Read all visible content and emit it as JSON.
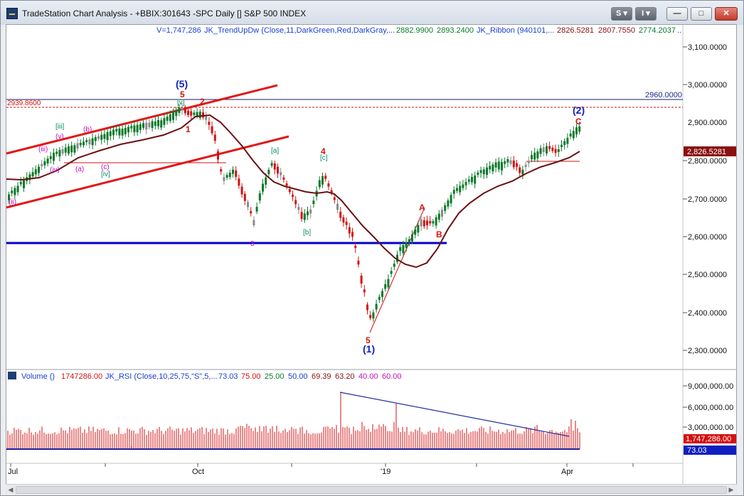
{
  "window": {
    "title": "TradeStation Chart Analysis - +BBIX:301643 -SPC Daily [] S&P 500 INDEX",
    "buttons": {
      "s_label": "S ▾",
      "i_label": "I ▾",
      "min": "—",
      "max": "□",
      "close": "✕"
    }
  },
  "price_header": {
    "v": "V=1,747,286",
    "trend": "JK_TrendUpDw (Close,11,DarkGreen,Red,DarkGray,...",
    "trend_v1": "2882.9900",
    "trend_v2": "2893.2400",
    "ribbon": "JK_Ribbon (940101,...",
    "ribbon_v1": "2826.5281",
    "ribbon_v2": "2807.7550",
    "ribbon_v3": "2774.2037",
    "more": ".."
  },
  "price_axis": [
    "3,100.0000",
    "3,000.0000",
    "2,800.0000",
    "2,700.0000",
    "2,600.0000",
    "2,500.0000",
    "2,400.0000",
    "2,300.0000"
  ],
  "price_axis_partial": "2,900.0000",
  "last_price": "2,826.5281",
  "level_labels": {
    "left": "2939.8600",
    "right": "2960.0000"
  },
  "waves": {
    "w5_major": "(5)",
    "w5_red": "5",
    "w2_red": "2",
    "w1_red": "1",
    "w_iii": "[iii]",
    "w_v_small": "(v)",
    "w_iii_small": "(iii)",
    "w_iv_small": "(iv)",
    "w_b_small": "(b)",
    "w_a_small": "(a)",
    "w_c_small": "(c)",
    "w_iv_bracket": "[iv]",
    "w_v_bracket": "[v]",
    "w_ii_left": "(ii)",
    "w_a_bracket": "[a]",
    "w_b_bracket": "[b]",
    "w_c_bracket": "[c]",
    "w4_red": "4",
    "w3": "3",
    "w5_bottom": "5",
    "w1_major": "(1)",
    "wA": "A",
    "wB": "B",
    "wC": "C",
    "w2_major": "(2)"
  },
  "volume_header": {
    "volume": "Volume ()",
    "volume_val": "1747286.00",
    "rsi": "JK_RSI (Close,10,25,75,\"S\",5,...",
    "v1": "73.03",
    "v2": "75.00",
    "v3": "25.00",
    "v4": "50.00",
    "v5": "69.39",
    "v6": "63.20",
    "v7": "40.00",
    "v8": "60.00"
  },
  "volume_axis": [
    "9,000,000.00",
    "6,000,000.00",
    "3,000,000.00"
  ],
  "volume_last": "1,747,286.00",
  "rsi_last": "73.03",
  "time_axis": [
    "Jul",
    "Oct",
    "'19",
    "Apr"
  ],
  "colors": {
    "up": "#0a7a2a",
    "down": "#d41010",
    "gray": "#8a8a8a",
    "ma": "#6b1010",
    "channel": "#e01818",
    "support": "#0000d0"
  }
}
